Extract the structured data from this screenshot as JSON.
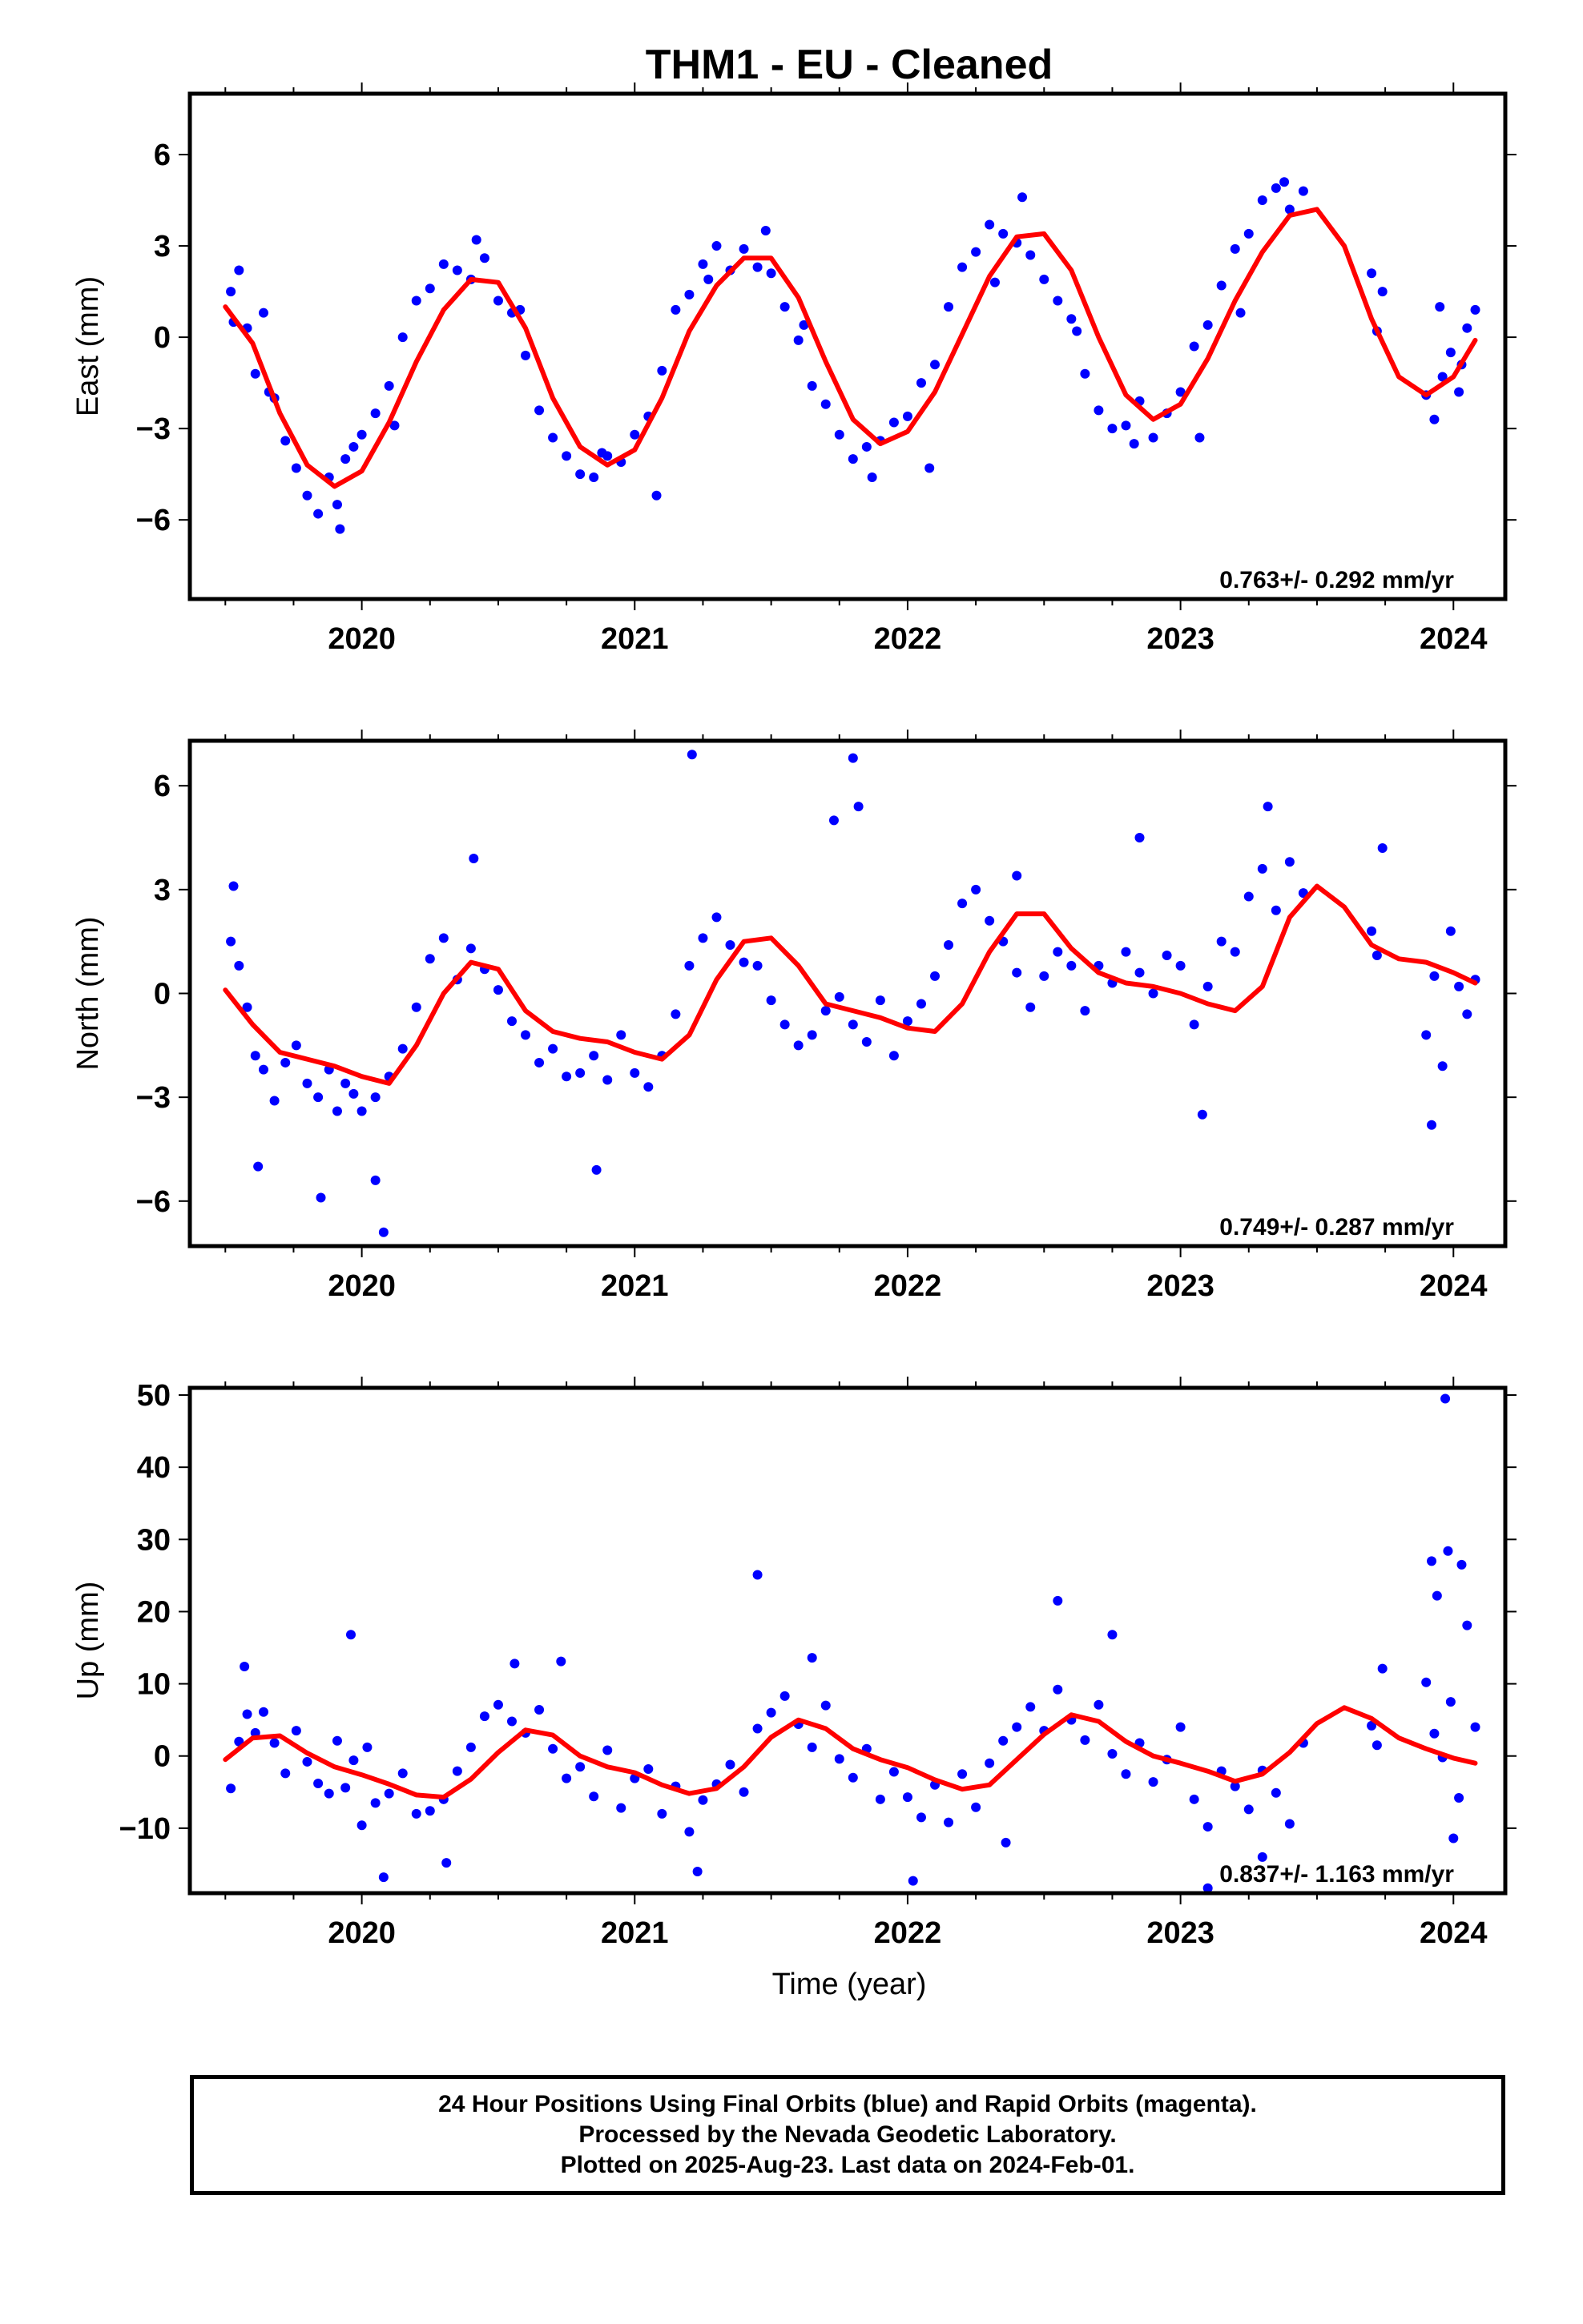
{
  "title": "THM1  - EU - Cleaned",
  "xlabel": "Time (year)",
  "colors": {
    "points": "#0000ff",
    "fit": "#ff0000",
    "axes": "#000000"
  },
  "footer": {
    "line1": "24 Hour Positions Using Final Orbits (blue) and Rapid Orbits (magenta).",
    "line2": "Processed by the Nevada Geodetic Laboratory.",
    "line3": "Plotted on 2025-Aug-23. Last data on 2024-Feb-01."
  },
  "chart_data": [
    {
      "type": "scatter",
      "ylabel": "East (mm)",
      "rate": "0.763+/- 0.292 mm/yr",
      "xlim": [
        2019.37,
        2024.19
      ],
      "ylim": [
        -8.6,
        8.0
      ],
      "xticks": [
        2020,
        2021,
        2022,
        2023,
        2024
      ],
      "yticks": [
        6,
        3,
        0,
        -3,
        -6
      ],
      "ytick_labels": [
        "6",
        "3",
        "0",
        "−3",
        "−6"
      ],
      "fit": {
        "x": [
          2019.5,
          2019.6,
          2019.7,
          2019.8,
          2019.9,
          2020.0,
          2020.1,
          2020.2,
          2020.3,
          2020.4,
          2020.5,
          2020.6,
          2020.7,
          2020.8,
          2020.9,
          2021.0,
          2021.1,
          2021.2,
          2021.3,
          2021.4,
          2021.5,
          2021.6,
          2021.7,
          2021.8,
          2021.9,
          2022.0,
          2022.1,
          2022.2,
          2022.3,
          2022.4,
          2022.5,
          2022.6,
          2022.7,
          2022.8,
          2022.9,
          2023.0,
          2023.1,
          2023.2,
          2023.3,
          2023.4,
          2023.5,
          2023.6,
          2023.7,
          2023.8,
          2023.9,
          2024.0,
          2024.08
        ],
        "y": [
          1.0,
          -0.2,
          -2.5,
          -4.2,
          -4.9,
          -4.4,
          -2.8,
          -0.8,
          0.9,
          1.9,
          1.8,
          0.3,
          -2.0,
          -3.6,
          -4.2,
          -3.7,
          -2.0,
          0.2,
          1.7,
          2.6,
          2.6,
          1.3,
          -0.8,
          -2.7,
          -3.5,
          -3.1,
          -1.8,
          0.1,
          2.0,
          3.3,
          3.4,
          2.2,
          0.0,
          -1.9,
          -2.7,
          -2.2,
          -0.7,
          1.2,
          2.8,
          4.0,
          4.2,
          3.0,
          0.6,
          -1.3,
          -1.9,
          -1.3,
          -0.1
        ]
      },
      "points": {
        "x": [
          2019.52,
          2019.55,
          2019.58,
          2019.61,
          2019.64,
          2019.68,
          2019.72,
          2019.76,
          2019.8,
          2019.84,
          2019.88,
          2019.91,
          2019.94,
          2019.97,
          2020.0,
          2020.05,
          2020.1,
          2020.15,
          2020.2,
          2020.25,
          2020.3,
          2020.35,
          2020.4,
          2020.45,
          2020.5,
          2020.55,
          2020.6,
          2020.65,
          2020.7,
          2020.75,
          2020.8,
          2020.85,
          2020.9,
          2020.95,
          2021.0,
          2021.05,
          2021.1,
          2021.15,
          2021.2,
          2021.25,
          2021.3,
          2021.35,
          2021.4,
          2021.45,
          2021.5,
          2021.55,
          2021.6,
          2021.65,
          2021.7,
          2021.75,
          2021.8,
          2021.85,
          2021.9,
          2021.95,
          2022.0,
          2022.05,
          2022.1,
          2022.15,
          2022.2,
          2022.25,
          2022.3,
          2022.35,
          2022.4,
          2022.45,
          2022.5,
          2022.55,
          2022.6,
          2022.65,
          2022.7,
          2022.75,
          2022.8,
          2022.85,
          2022.9,
          2022.95,
          2023.0,
          2023.05,
          2023.1,
          2023.15,
          2023.2,
          2023.25,
          2023.3,
          2023.35,
          2023.4,
          2023.45,
          2023.7,
          2023.72,
          2023.74,
          2023.9,
          2023.93,
          2023.96,
          2023.99,
          2024.02,
          2024.05,
          2024.08,
          2019.53,
          2019.66,
          2019.92,
          2020.12,
          2020.42,
          2020.58,
          2020.88,
          2021.08,
          2021.27,
          2021.48,
          2021.62,
          2021.87,
          2022.08,
          2022.32,
          2022.42,
          2022.62,
          2022.83,
          2023.07,
          2023.22,
          2023.38,
          2023.95,
          2024.03
        ],
        "y": [
          1.5,
          2.2,
          0.3,
          -1.2,
          0.8,
          -2.0,
          -3.4,
          -4.3,
          -5.2,
          -5.8,
          -4.6,
          -5.5,
          -4.0,
          -3.6,
          -3.2,
          -2.5,
          -1.6,
          0.0,
          1.2,
          1.6,
          2.4,
          2.2,
          1.9,
          2.6,
          1.2,
          0.8,
          -0.6,
          -2.4,
          -3.3,
          -3.9,
          -4.5,
          -4.6,
          -3.9,
          -4.1,
          -3.2,
          -2.6,
          -1.1,
          0.9,
          1.4,
          2.4,
          3.0,
          2.2,
          2.9,
          2.3,
          2.1,
          1.0,
          -0.1,
          -1.6,
          -2.2,
          -3.2,
          -4.0,
          -3.6,
          -3.4,
          -2.8,
          -2.6,
          -1.5,
          -0.9,
          1.0,
          2.3,
          2.8,
          3.7,
          3.4,
          3.1,
          2.7,
          1.9,
          1.2,
          0.6,
          -1.2,
          -2.4,
          -3.0,
          -2.9,
          -2.1,
          -3.3,
          -2.5,
          -1.8,
          -0.3,
          0.4,
          1.7,
          2.9,
          3.4,
          4.5,
          4.9,
          4.2,
          4.8,
          2.1,
          0.2,
          1.5,
          -1.9,
          -2.7,
          -1.3,
          -0.5,
          -1.8,
          0.3,
          0.9,
          0.5,
          -1.8,
          -6.3,
          -2.9,
          3.2,
          0.9,
          -3.8,
          -5.2,
          1.9,
          3.5,
          0.4,
          -4.6,
          -4.3,
          1.8,
          4.6,
          0.2,
          -3.5,
          -3.3,
          0.8,
          5.1,
          1.0,
          -0.9
        ]
      }
    },
    {
      "type": "scatter",
      "ylabel": "North (mm)",
      "rate": "0.749+/- 0.287 mm/yr",
      "xlim": [
        2019.37,
        2024.19
      ],
      "ylim": [
        -7.3,
        7.3
      ],
      "xticks": [
        2020,
        2021,
        2022,
        2023,
        2024
      ],
      "yticks": [
        6,
        3,
        0,
        -3,
        -6
      ],
      "ytick_labels": [
        "6",
        "3",
        "0",
        "−3",
        "−6"
      ],
      "fit": {
        "x": [
          2019.5,
          2019.6,
          2019.7,
          2019.8,
          2019.9,
          2020.0,
          2020.1,
          2020.2,
          2020.3,
          2020.4,
          2020.5,
          2020.6,
          2020.7,
          2020.8,
          2020.9,
          2021.0,
          2021.1,
          2021.2,
          2021.3,
          2021.4,
          2021.5,
          2021.6,
          2021.7,
          2021.8,
          2021.9,
          2022.0,
          2022.1,
          2022.2,
          2022.3,
          2022.4,
          2022.5,
          2022.6,
          2022.7,
          2022.8,
          2022.9,
          2023.0,
          2023.1,
          2023.2,
          2023.3,
          2023.4,
          2023.5,
          2023.6,
          2023.7,
          2023.8,
          2023.9,
          2024.0,
          2024.08
        ],
        "y": [
          0.1,
          -0.9,
          -1.7,
          -1.9,
          -2.1,
          -2.4,
          -2.6,
          -1.5,
          0.0,
          0.9,
          0.7,
          -0.5,
          -1.1,
          -1.3,
          -1.4,
          -1.7,
          -1.9,
          -1.2,
          0.4,
          1.5,
          1.6,
          0.8,
          -0.3,
          -0.5,
          -0.7,
          -1.0,
          -1.1,
          -0.3,
          1.2,
          2.3,
          2.3,
          1.3,
          0.6,
          0.3,
          0.2,
          0.0,
          -0.3,
          -0.5,
          0.2,
          2.2,
          3.1,
          2.5,
          1.4,
          1.0,
          0.9,
          0.6,
          0.3
        ]
      },
      "points": {
        "x": [
          2019.52,
          2019.55,
          2019.58,
          2019.61,
          2019.64,
          2019.68,
          2019.72,
          2019.76,
          2019.8,
          2019.84,
          2019.88,
          2019.91,
          2019.94,
          2019.97,
          2020.0,
          2020.05,
          2020.1,
          2020.15,
          2020.2,
          2020.25,
          2020.3,
          2020.35,
          2020.4,
          2020.45,
          2020.5,
          2020.55,
          2020.6,
          2020.65,
          2020.7,
          2020.75,
          2020.8,
          2020.85,
          2020.9,
          2020.95,
          2021.0,
          2021.05,
          2021.1,
          2021.15,
          2021.2,
          2021.25,
          2021.3,
          2021.35,
          2021.4,
          2021.45,
          2021.5,
          2021.55,
          2021.6,
          2021.65,
          2021.7,
          2021.75,
          2021.8,
          2021.85,
          2021.9,
          2021.95,
          2022.0,
          2022.05,
          2022.1,
          2022.15,
          2022.2,
          2022.25,
          2022.3,
          2022.35,
          2022.4,
          2022.45,
          2022.5,
          2022.55,
          2022.6,
          2022.65,
          2022.7,
          2022.75,
          2022.8,
          2022.85,
          2022.9,
          2022.95,
          2023.0,
          2023.05,
          2023.1,
          2023.15,
          2023.2,
          2023.25,
          2023.3,
          2023.35,
          2023.4,
          2023.45,
          2023.7,
          2023.72,
          2023.74,
          2023.9,
          2023.93,
          2023.96,
          2023.99,
          2024.02,
          2024.05,
          2024.08,
          2019.53,
          2019.62,
          2019.85,
          2020.05,
          2020.08,
          2020.41,
          2020.86,
          2021.21,
          2021.73,
          2021.8,
          2021.82,
          2022.4,
          2022.85,
          2023.08,
          2023.32,
          2023.92
        ],
        "y": [
          1.5,
          0.8,
          -0.4,
          -1.8,
          -2.2,
          -3.1,
          -2.0,
          -1.5,
          -2.6,
          -3.0,
          -2.2,
          -3.4,
          -2.6,
          -2.9,
          -3.4,
          -3.0,
          -2.4,
          -1.6,
          -0.4,
          1.0,
          1.6,
          0.4,
          1.3,
          0.7,
          0.1,
          -0.8,
          -1.2,
          -2.0,
          -1.6,
          -2.4,
          -2.3,
          -1.8,
          -2.5,
          -1.2,
          -2.3,
          -2.7,
          -1.8,
          -0.6,
          0.8,
          1.6,
          2.2,
          1.4,
          0.9,
          0.8,
          -0.2,
          -0.9,
          -1.5,
          -1.2,
          -0.5,
          -0.1,
          -0.9,
          -1.4,
          -0.2,
          -1.8,
          -0.8,
          -0.3,
          0.5,
          1.4,
          2.6,
          3.0,
          2.1,
          1.5,
          0.6,
          -0.4,
          0.5,
          1.2,
          0.8,
          -0.5,
          0.8,
          0.3,
          1.2,
          0.6,
          0.0,
          1.1,
          0.8,
          -0.9,
          0.2,
          1.5,
          1.2,
          2.8,
          3.6,
          2.4,
          3.8,
          2.9,
          1.8,
          1.1,
          4.2,
          -1.2,
          0.5,
          -2.1,
          1.8,
          0.2,
          -0.6,
          0.4,
          3.1,
          -5.0,
          -5.9,
          -5.4,
          -6.9,
          3.9,
          -5.1,
          6.9,
          5.0,
          6.8,
          5.4,
          3.4,
          4.5,
          -3.5,
          5.4,
          -3.8
        ]
      }
    },
    {
      "type": "scatter",
      "ylabel": "Up (mm)",
      "rate": "0.837+/- 1.163 mm/yr",
      "xlim": [
        2019.37,
        2024.19
      ],
      "ylim": [
        -19.0,
        51.0
      ],
      "xticks": [
        2020,
        2021,
        2022,
        2023,
        2024
      ],
      "yticks": [
        50,
        40,
        30,
        20,
        10,
        0,
        -10
      ],
      "ytick_labels": [
        "50",
        "40",
        "30",
        "20",
        "10",
        "0",
        "−10"
      ],
      "fit": {
        "x": [
          2019.5,
          2019.6,
          2019.7,
          2019.8,
          2019.9,
          2020.0,
          2020.1,
          2020.2,
          2020.3,
          2020.4,
          2020.5,
          2020.6,
          2020.7,
          2020.8,
          2020.9,
          2021.0,
          2021.1,
          2021.2,
          2021.3,
          2021.4,
          2021.5,
          2021.6,
          2021.7,
          2021.8,
          2021.9,
          2022.0,
          2022.1,
          2022.2,
          2022.3,
          2022.4,
          2022.5,
          2022.6,
          2022.7,
          2022.8,
          2022.9,
          2023.0,
          2023.1,
          2023.2,
          2023.3,
          2023.4,
          2023.5,
          2023.6,
          2023.7,
          2023.8,
          2023.9,
          2024.0,
          2024.08
        ],
        "y": [
          -0.5,
          2.5,
          2.8,
          0.4,
          -1.5,
          -2.6,
          -3.9,
          -5.4,
          -5.7,
          -3.2,
          0.5,
          3.6,
          2.9,
          0.0,
          -1.5,
          -2.3,
          -4.0,
          -5.2,
          -4.5,
          -1.5,
          2.6,
          5.0,
          3.8,
          1.0,
          -0.5,
          -1.6,
          -3.3,
          -4.6,
          -4.0,
          -0.5,
          3.0,
          5.7,
          4.8,
          2.0,
          0.0,
          -1.0,
          -2.1,
          -3.5,
          -2.5,
          0.5,
          4.5,
          6.7,
          5.2,
          2.5,
          1.0,
          -0.3,
          -1.0
        ]
      },
      "points": {
        "x": [
          2019.52,
          2019.55,
          2019.58,
          2019.61,
          2019.64,
          2019.68,
          2019.72,
          2019.76,
          2019.8,
          2019.84,
          2019.88,
          2019.91,
          2019.94,
          2019.97,
          2020.0,
          2020.05,
          2020.1,
          2020.15,
          2020.2,
          2020.25,
          2020.3,
          2020.35,
          2020.4,
          2020.45,
          2020.5,
          2020.55,
          2020.6,
          2020.65,
          2020.7,
          2020.75,
          2020.8,
          2020.85,
          2020.9,
          2020.95,
          2021.0,
          2021.05,
          2021.1,
          2021.15,
          2021.2,
          2021.25,
          2021.3,
          2021.35,
          2021.4,
          2021.45,
          2021.5,
          2021.55,
          2021.6,
          2021.65,
          2021.7,
          2021.75,
          2021.8,
          2021.85,
          2021.9,
          2021.95,
          2022.0,
          2022.05,
          2022.1,
          2022.15,
          2022.2,
          2022.25,
          2022.3,
          2022.35,
          2022.4,
          2022.45,
          2022.5,
          2022.55,
          2022.6,
          2022.65,
          2022.7,
          2022.75,
          2022.8,
          2022.85,
          2022.9,
          2022.95,
          2023.0,
          2023.05,
          2023.1,
          2023.15,
          2023.2,
          2023.25,
          2023.3,
          2023.35,
          2023.4,
          2023.45,
          2023.7,
          2023.72,
          2023.74,
          2023.9,
          2023.93,
          2023.96,
          2023.99,
          2024.02,
          2024.05,
          2024.08,
          2019.57,
          2019.96,
          2020.02,
          2020.08,
          2020.31,
          2020.56,
          2020.73,
          2021.23,
          2021.45,
          2021.65,
          2022.02,
          2022.36,
          2022.55,
          2022.75,
          2023.1,
          2023.3,
          2023.92,
          2023.94,
          2023.98,
          2024.0,
          2024.03,
          2023.97
        ],
        "y": [
          -4.5,
          2.0,
          5.8,
          3.2,
          6.1,
          1.8,
          -2.4,
          3.5,
          -0.8,
          -3.8,
          -5.2,
          2.1,
          -4.4,
          -0.6,
          -9.6,
          -6.5,
          -5.2,
          -2.4,
          -8.0,
          -7.6,
          -6.0,
          -2.1,
          1.2,
          5.5,
          7.1,
          4.8,
          3.2,
          6.4,
          1.0,
          -3.1,
          -1.5,
          -5.6,
          0.8,
          -7.2,
          -3.1,
          -1.8,
          -8.0,
          -4.2,
          -10.5,
          -6.1,
          -3.9,
          -1.2,
          -5.0,
          3.8,
          6.0,
          8.3,
          4.4,
          1.2,
          7.0,
          -0.4,
          -3.0,
          1.0,
          -6.0,
          -2.2,
          -5.7,
          -8.5,
          -4.0,
          -9.2,
          -2.5,
          -7.1,
          -1.0,
          2.1,
          4.0,
          6.8,
          3.5,
          9.2,
          5.0,
          2.2,
          7.1,
          0.3,
          -2.5,
          1.8,
          -3.6,
          -0.5,
          4.0,
          -6.0,
          -9.8,
          -2.1,
          -4.2,
          -7.4,
          -2.0,
          -5.1,
          -9.4,
          1.8,
          4.2,
          1.5,
          12.1,
          10.2,
          3.1,
          -0.2,
          7.5,
          -5.8,
          18.1,
          4.0,
          12.4,
          16.8,
          1.2,
          -16.8,
          -14.8,
          12.8,
          13.1,
          -16.0,
          25.1,
          13.6,
          -17.3,
          -12.0,
          21.5,
          16.8,
          -18.3,
          -14.0,
          27.0,
          22.2,
          28.4,
          -11.4,
          26.5,
          49.5
        ]
      }
    }
  ]
}
